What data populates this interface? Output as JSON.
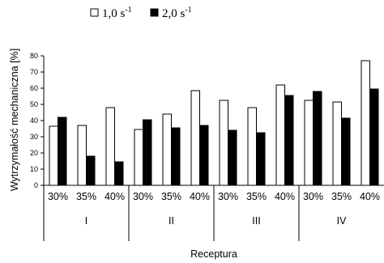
{
  "chart_data": {
    "type": "bar",
    "ylabel": "Wytrzymałość mechaniczna [%]",
    "xlabel": "Receptura",
    "ylim": [
      0,
      80
    ],
    "yticks": [
      0,
      10,
      20,
      30,
      40,
      50,
      60,
      70,
      80
    ],
    "grid": false,
    "legend_position": "top",
    "groups": [
      {
        "label": "I",
        "categories": [
          "30%",
          "35%",
          "40%"
        ]
      },
      {
        "label": "II",
        "categories": [
          "30%",
          "35%",
          "40%"
        ]
      },
      {
        "label": "III",
        "categories": [
          "30%",
          "35%",
          "40%"
        ]
      },
      {
        "label": "IV",
        "categories": [
          "30%",
          "35%",
          "40%"
        ]
      }
    ],
    "series": [
      {
        "name": "1,0 s-1",
        "legend": {
          "base": "1,0 s",
          "sup": "-1"
        },
        "fill": "#ffffff",
        "values": [
          36.5,
          37,
          48,
          34.5,
          44,
          58.5,
          52.5,
          48,
          62,
          52.5,
          51.5,
          77
        ]
      },
      {
        "name": "2,0 s-1",
        "legend": {
          "base": "2,0 s",
          "sup": "-1"
        },
        "fill": "#000000",
        "values": [
          42,
          18,
          14.5,
          40.5,
          35.5,
          37,
          34,
          32.5,
          55.5,
          58,
          41.5,
          59.5
        ]
      }
    ]
  }
}
